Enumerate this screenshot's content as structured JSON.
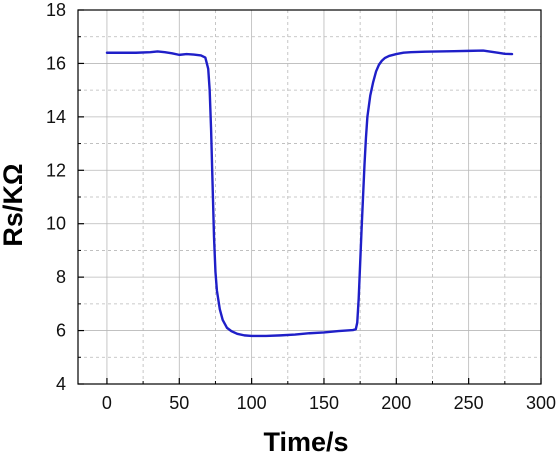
{
  "chart_data": {
    "type": "line",
    "title": "",
    "xlabel": "Time/s",
    "ylabel": "Rs/KΩ",
    "xlim": [
      -20,
      300
    ],
    "ylim": [
      4,
      18
    ],
    "x_ticks": [
      0,
      50,
      100,
      150,
      200,
      250,
      300
    ],
    "y_ticks": [
      4,
      6,
      8,
      10,
      12,
      14,
      16,
      18
    ],
    "grid": true,
    "legend": "none",
    "line_color": "#1f1fc8",
    "series": [
      {
        "x": [
          0,
          10,
          20,
          30,
          35,
          40,
          45,
          50,
          55,
          60,
          65,
          68,
          70,
          71,
          72,
          73,
          74,
          75,
          76,
          78,
          80,
          83,
          86,
          90,
          95,
          100,
          110,
          120,
          130,
          140,
          150,
          160,
          165,
          170,
          172,
          173,
          174,
          175,
          176,
          177,
          178,
          179,
          180,
          182,
          184,
          186,
          188,
          190,
          192,
          195,
          200,
          205,
          210,
          220,
          230,
          240,
          250,
          260,
          270,
          275,
          280
        ],
        "y": [
          16.4,
          16.4,
          16.4,
          16.42,
          16.45,
          16.42,
          16.38,
          16.32,
          16.35,
          16.33,
          16.3,
          16.22,
          15.8,
          15.0,
          13.5,
          11.5,
          9.5,
          8.2,
          7.5,
          6.8,
          6.4,
          6.1,
          5.98,
          5.88,
          5.82,
          5.8,
          5.8,
          5.82,
          5.85,
          5.9,
          5.93,
          5.98,
          6.0,
          6.02,
          6.05,
          6.3,
          7.2,
          8.5,
          9.8,
          11.0,
          12.2,
          13.2,
          14.0,
          14.8,
          15.3,
          15.7,
          15.95,
          16.1,
          16.2,
          16.28,
          16.35,
          16.4,
          16.42,
          16.44,
          16.45,
          16.46,
          16.47,
          16.48,
          16.4,
          16.36,
          16.35
        ]
      }
    ]
  }
}
